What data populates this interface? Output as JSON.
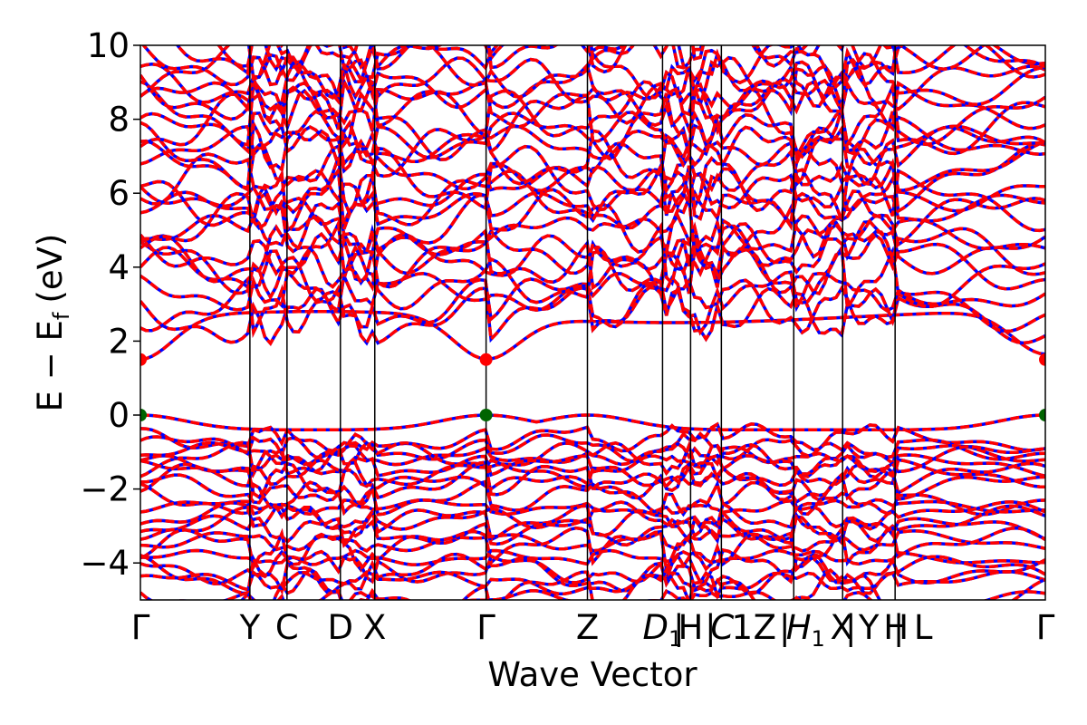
{
  "chart_data": {
    "type": "line",
    "xlabel": "Wave Vector",
    "ylabel": "E − E",
    "ylabel_sub": "f",
    "ylabel_unit": "(eV)",
    "ylim": [
      -5,
      10
    ],
    "yticks": [
      -4,
      -2,
      0,
      2,
      4,
      6,
      8,
      10
    ],
    "ytick_labels": [
      "−4",
      "−2",
      "0",
      "2",
      "4",
      "6",
      "8",
      "10"
    ],
    "xlim": [
      0,
      1
    ],
    "kpoints": [
      {
        "label": "Γ",
        "x": 0.0
      },
      {
        "label": "Y",
        "x": 0.121
      },
      {
        "label": "C",
        "x": 0.162
      },
      {
        "label": "D",
        "x": 0.221
      },
      {
        "label": "X",
        "x": 0.259
      },
      {
        "label": "Γ",
        "x": 0.382
      },
      {
        "label": "Z",
        "x": 0.494
      },
      {
        "label": "D",
        "x": 0.577,
        "italic": true,
        "subscript": "1"
      },
      {
        "label": "|",
        "x": 0.595
      },
      {
        "label": "H",
        "x": 0.608
      },
      {
        "label": "|",
        "x": 0.63
      },
      {
        "label": "C",
        "x": 0.643,
        "italic": true
      },
      {
        "label": "1",
        "x": 0.665
      },
      {
        "label": "Z",
        "x": 0.69
      },
      {
        "label": "|",
        "x": 0.712
      },
      {
        "label": "H",
        "x": 0.735,
        "italic": true,
        "subscript": "1"
      },
      {
        "label": "X",
        "x": 0.775
      },
      {
        "label": "|",
        "x": 0.785
      },
      {
        "label": "Y",
        "x": 0.805
      },
      {
        "label": "H",
        "x": 0.835
      },
      {
        "label": "|",
        "x": 0.838
      },
      {
        "label": "L",
        "x": 0.865
      },
      {
        "label": "Γ",
        "x": 1.0
      }
    ],
    "vlines": [
      0.121,
      0.162,
      0.221,
      0.259,
      0.382,
      0.494,
      0.577,
      0.608,
      0.642,
      0.722,
      0.776,
      0.834
    ],
    "special_points": [
      {
        "x": 0.0,
        "y": 1.5,
        "color": "#ff0000"
      },
      {
        "x": 0.382,
        "y": 1.5,
        "color": "#ff0000"
      },
      {
        "x": 1.0,
        "y": 1.5,
        "color": "#ff0000"
      },
      {
        "x": 0.0,
        "y": 0.0,
        "color": "#006400"
      },
      {
        "x": 0.382,
        "y": 0.0,
        "color": "#006400"
      },
      {
        "x": 1.0,
        "y": 0.0,
        "color": "#006400"
      }
    ],
    "series": [
      {
        "line_color": "#0000ff",
        "line_style": "solid"
      },
      {
        "line_color": "#ff0000",
        "line_style": "dashed"
      }
    ],
    "bands_valence_min_ev": -5,
    "band_gap_cbm_ev": 1.5,
    "band_gap_vbm_ev": 0.0,
    "grid": false
  }
}
